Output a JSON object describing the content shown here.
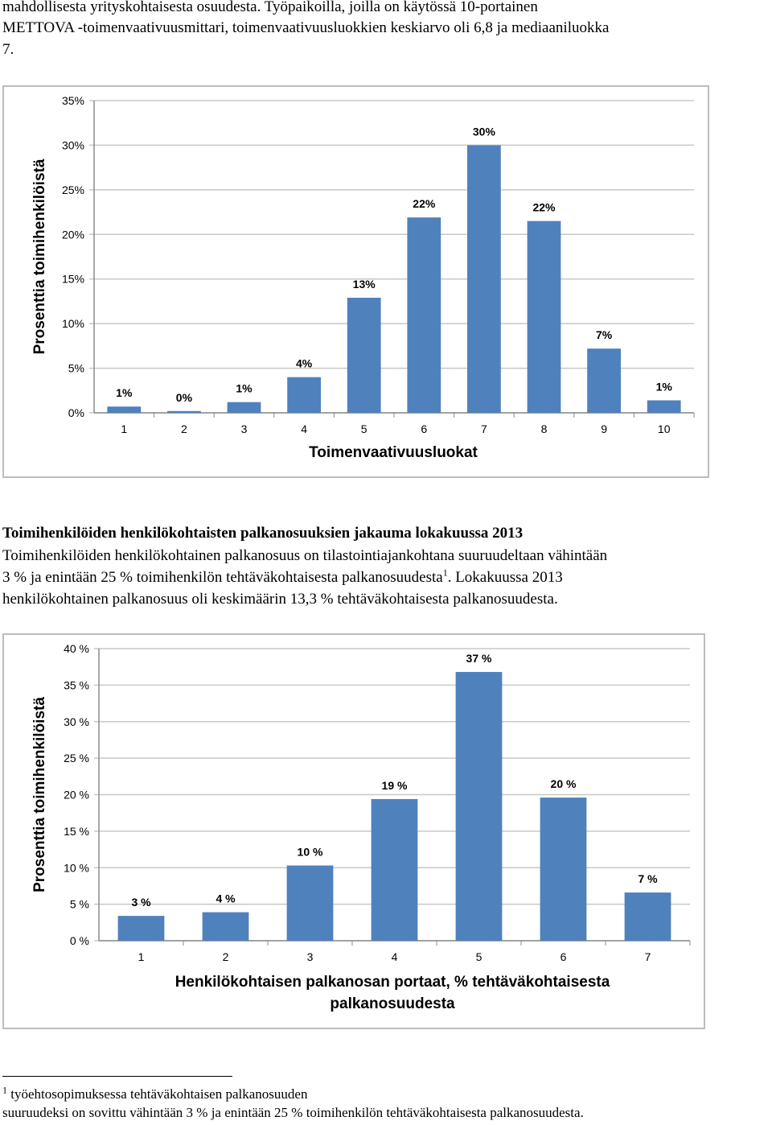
{
  "intro": {
    "line1": "mahdollisesta yrityskohtaisesta osuudesta. Työpaikoilla, joilla on käytössä 10-portainen",
    "line2": "METTOVA -toimenvaativuusmittari, toimenvaativuusluokkien keskiarvo oli 6,8 ja mediaaniluokka",
    "line3": "7."
  },
  "section": {
    "heading": "Toimihenkilöiden henkilökohtaisten palkanosuuksien jakauma lokakuussa 2013",
    "p_line1": "Toimihenkilöiden henkilökohtainen palkanosuus on tilastointiajankohtana suuruudeltaan vähintään",
    "p_line2a": "3 % ja enintään 25 % toimihenkilön tehtäväkohtaisesta palkanosuudesta",
    "p_sup": "1",
    "p_line2b": ". Lokakuussa 2013",
    "p_line3": "henkilökohtainen palkanosuus oli keskimäärin 13,3 % tehtäväkohtaisesta palkanosuudesta."
  },
  "footnote": {
    "mark": "1",
    "line1": " työehtosopimuksessa tehtäväkohtaisen palkanosuuden",
    "line2": "suuruudeksi on sovittu vähintään 3 % ja enintään 25 % toimihenkilön tehtäväkohtaisesta palkanosuudesta."
  },
  "chart_data": [
    {
      "type": "bar",
      "title": "",
      "xlabel": "Toimenvaativuusluokat",
      "ylabel": "Prosenttia toimihenkilöistä",
      "categories": [
        "1",
        "2",
        "3",
        "4",
        "5",
        "6",
        "7",
        "8",
        "9",
        "10"
      ],
      "values": [
        0.7,
        0.2,
        1.2,
        4.0,
        12.9,
        21.9,
        30.0,
        21.5,
        7.2,
        1.4
      ],
      "data_labels": [
        "1%",
        "0%",
        "1%",
        "4%",
        "13%",
        "22%",
        "30%",
        "22%",
        "7%",
        "1%"
      ],
      "ylim": [
        0,
        35
      ],
      "yticks": [
        0,
        5,
        10,
        15,
        20,
        25,
        30,
        35
      ],
      "ytick_labels": [
        "0%",
        "5%",
        "10%",
        "15%",
        "20%",
        "25%",
        "30%",
        "35%"
      ],
      "grid": true,
      "bar_color": "#4f81bd"
    },
    {
      "type": "bar",
      "title": "",
      "xlabel": "Henkilökohtaisen palkanosan portaat, % tehtäväkohtaisesta palkanosuudesta",
      "xlabel_lines": [
        "Henkilökohtaisen palkanosan portaat, % tehtäväkohtaisesta",
        "palkanosuudesta"
      ],
      "ylabel": "Prosenttia toimihenkilöistä",
      "categories": [
        "1",
        "2",
        "3",
        "4",
        "5",
        "6",
        "7"
      ],
      "values": [
        3.4,
        3.9,
        10.3,
        19.4,
        36.8,
        19.6,
        6.6
      ],
      "data_labels": [
        "3 %",
        "4 %",
        "10 %",
        "19 %",
        "37 %",
        "20 %",
        "7 %"
      ],
      "ylim": [
        0,
        40
      ],
      "yticks": [
        0,
        5,
        10,
        15,
        20,
        25,
        30,
        35,
        40
      ],
      "ytick_labels": [
        "0 %",
        "5 %",
        "10 %",
        "15 %",
        "20 %",
        "25 %",
        "30 %",
        "35 %",
        "40 %"
      ],
      "grid": true,
      "bar_color": "#4f81bd"
    }
  ]
}
